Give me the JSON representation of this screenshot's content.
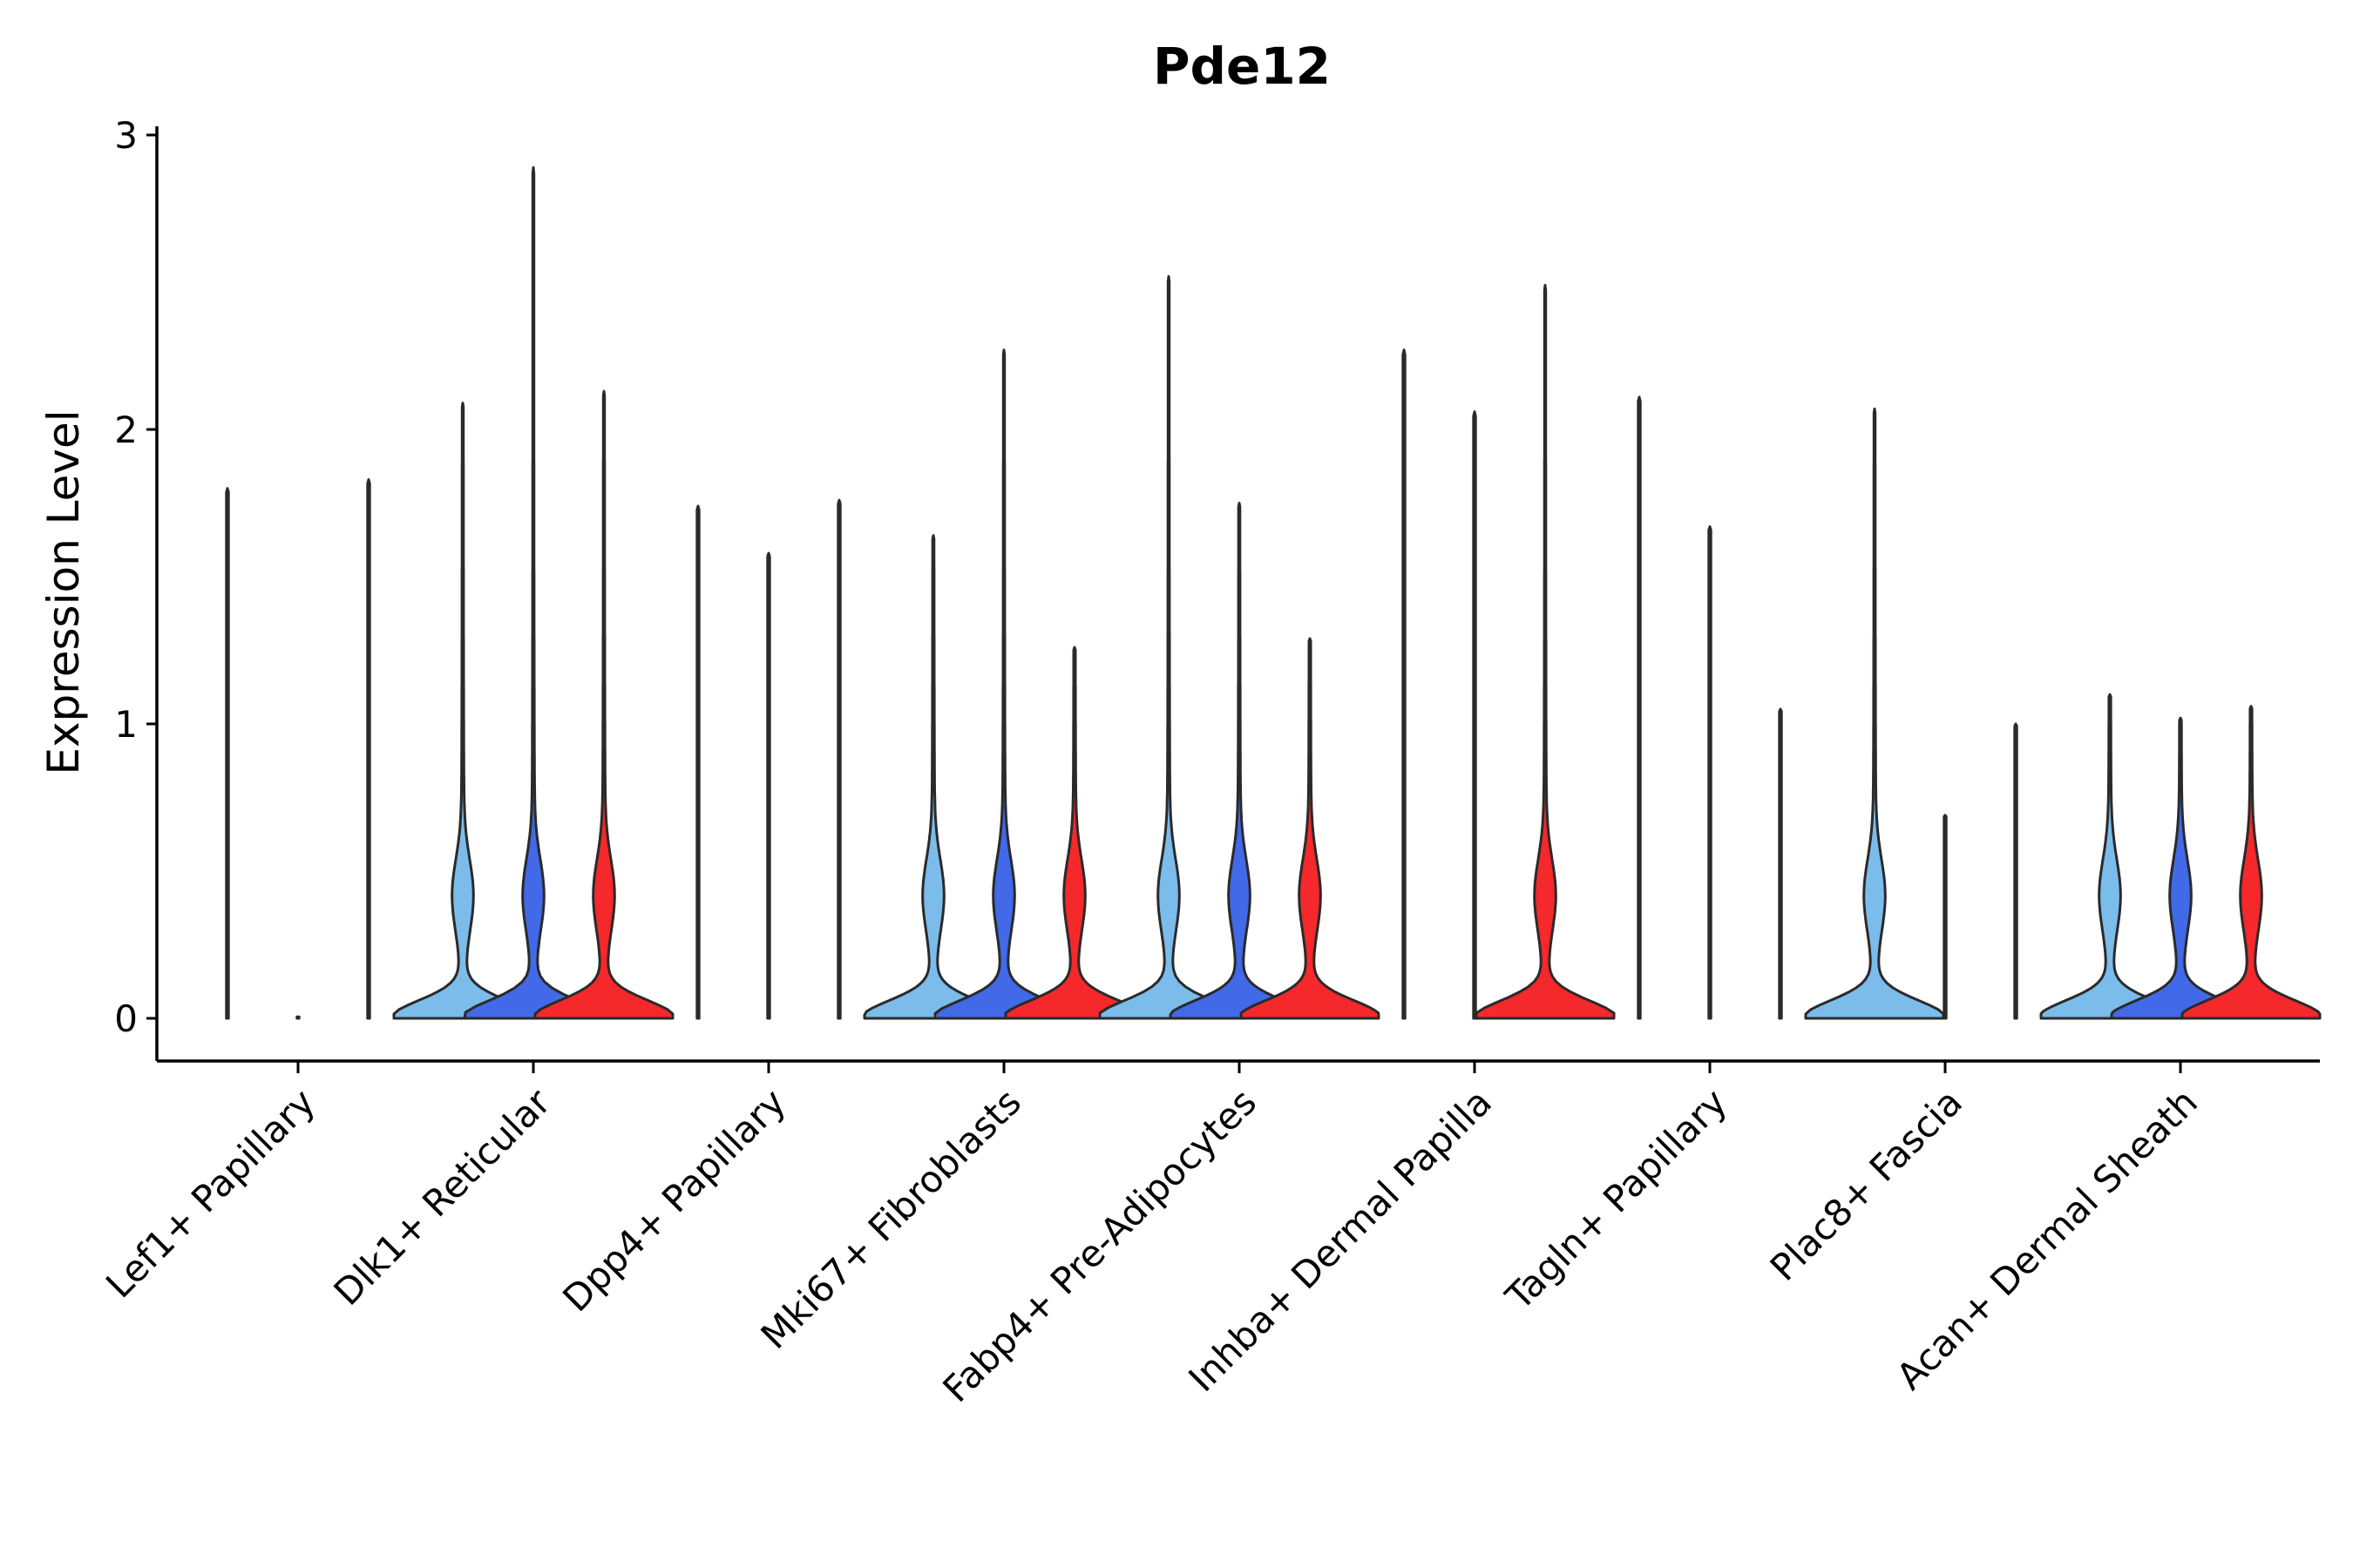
{
  "chart_data": {
    "type": "violin",
    "title": "Pde12",
    "xlabel": "",
    "ylabel": "Expression Level",
    "ylim": [
      -0.15,
      3.03
    ],
    "yticks": [
      0,
      1,
      2,
      3
    ],
    "legend": "none",
    "grid": false,
    "group_colors": [
      "#7BBCEB",
      "#4169E8",
      "#F5282B"
    ],
    "categories": [
      "Lef1+ Papillary",
      "Dlk1+ Reticular",
      "Dpp4+ Papillary",
      "Mki67+ Fibroblasts",
      "Fabp4+ Pre-Adipocytes",
      "Inhba+ Dermal Papilla",
      "Tagln+ Papillary",
      "Plac8+ Fascia",
      "Acan+ Dermal Sheath"
    ],
    "violins": [
      [
        {
          "max": 1.8,
          "bw": 0.02,
          "shape": "flat"
        },
        {
          "max": 0.0,
          "bw": 0.0,
          "shape": "flat"
        },
        {
          "max": 1.83,
          "bw": 0.02,
          "shape": "flat"
        }
      ],
      [
        {
          "max": 2.09,
          "bw": 0.5,
          "shape": "bump"
        },
        {
          "max": 2.89,
          "bw": 0.5,
          "shape": "bump"
        },
        {
          "max": 2.13,
          "bw": 0.5,
          "shape": "bump"
        }
      ],
      [
        {
          "max": 1.74,
          "bw": 0.02,
          "shape": "flat"
        },
        {
          "max": 1.58,
          "bw": 0.02,
          "shape": "flat"
        },
        {
          "max": 1.76,
          "bw": 0.02,
          "shape": "flat"
        }
      ],
      [
        {
          "max": 1.64,
          "bw": 0.5,
          "shape": "bump"
        },
        {
          "max": 2.27,
          "bw": 0.5,
          "shape": "bump"
        },
        {
          "max": 1.26,
          "bw": 0.5,
          "shape": "bump"
        }
      ],
      [
        {
          "max": 2.52,
          "bw": 0.5,
          "shape": "bump"
        },
        {
          "max": 1.75,
          "bw": 0.5,
          "shape": "bump"
        },
        {
          "max": 1.29,
          "bw": 0.5,
          "shape": "bump"
        }
      ],
      [
        {
          "max": 2.27,
          "bw": 0.02,
          "shape": "flat"
        },
        {
          "max": 2.06,
          "bw": 0.02,
          "shape": "flat"
        },
        {
          "max": 2.49,
          "bw": 0.5,
          "shape": "bump"
        }
      ],
      [
        {
          "max": 2.11,
          "bw": 0.02,
          "shape": "flat"
        },
        {
          "max": 1.67,
          "bw": 0.02,
          "shape": "flat"
        },
        {
          "max": 1.05,
          "bw": 0.02,
          "shape": "flat"
        }
      ],
      [
        {
          "max": 2.07,
          "bw": 0.5,
          "shape": "bump"
        },
        {
          "max": 0.69,
          "bw": 0.02,
          "shape": "flat"
        },
        {
          "max": 1.0,
          "bw": 0.02,
          "shape": "flat"
        }
      ],
      [
        {
          "max": 1.1,
          "bw": 0.5,
          "shape": "bump"
        },
        {
          "max": 1.02,
          "bw": 0.5,
          "shape": "bump"
        },
        {
          "max": 1.06,
          "bw": 0.5,
          "shape": "bump"
        }
      ]
    ]
  }
}
